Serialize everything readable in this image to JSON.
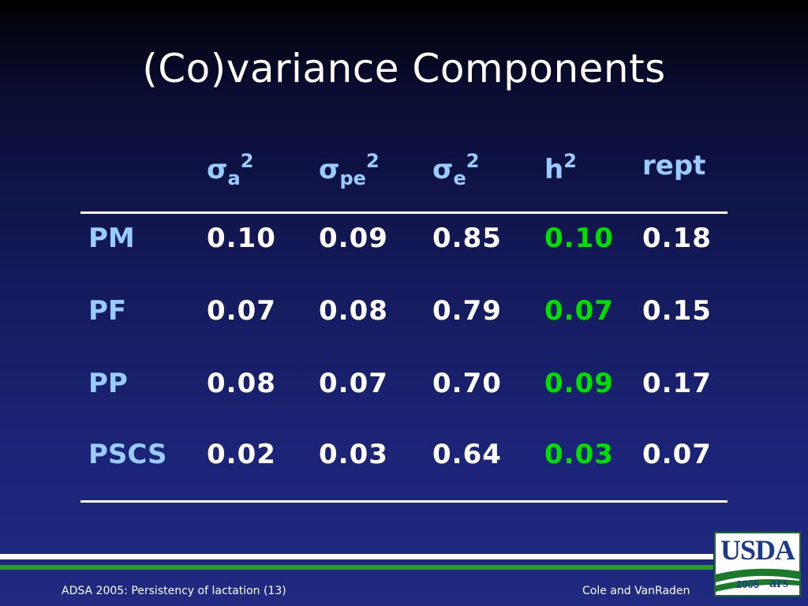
{
  "slide": {
    "title": "(Co)variance Components"
  },
  "table": {
    "headers": [
      {
        "sym": "σ",
        "sub": "a",
        "sup": "2"
      },
      {
        "sym": "σ",
        "sub": "pe",
        "sup": "2"
      },
      {
        "sym": "σ",
        "sub": "e",
        "sup": "2"
      },
      {
        "sym": "h",
        "sub": "",
        "sup": "2"
      },
      {
        "sym": "rept",
        "sub": "",
        "sup": ""
      }
    ],
    "rows": [
      {
        "label": "PM",
        "values": [
          "0.10",
          "0.09",
          "0.85",
          "0.10",
          "0.18"
        ]
      },
      {
        "label": "PF",
        "values": [
          "0.07",
          "0.08",
          "0.79",
          "0.07",
          "0.15"
        ]
      },
      {
        "label": "PP",
        "values": [
          "0.08",
          "0.07",
          "0.70",
          "0.09",
          "0.17"
        ]
      },
      {
        "label": "PSCS",
        "values": [
          "0.02",
          "0.03",
          "0.64",
          "0.03",
          "0.07"
        ]
      }
    ]
  },
  "footer": {
    "left": "ADSA 2005: Persistency of lactation (13)",
    "right": "Cole and VanRaden"
  },
  "logo": {
    "name": "USDA",
    "year": "2005",
    "mark": "ars"
  },
  "colors": {
    "label": "#99ccff",
    "value": "#ffffff",
    "highlight": "#00e000"
  }
}
